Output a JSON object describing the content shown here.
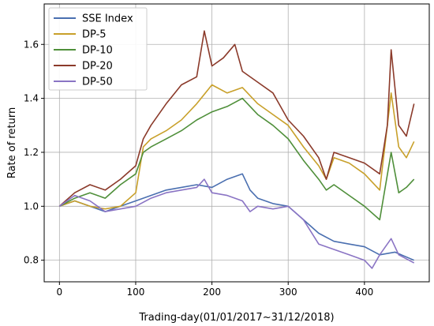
{
  "chart_data": {
    "type": "line",
    "title": "",
    "xlabel": "Trading-day(01/01/2017~31/12/2018)",
    "ylabel": "Rate of return",
    "xlim": [
      -20,
      485
    ],
    "ylim": [
      0.72,
      1.75
    ],
    "xticks": [
      0,
      100,
      200,
      300,
      400
    ],
    "yticks": [
      0.8,
      1.0,
      1.2,
      1.4,
      1.6
    ],
    "xtick_labels": [
      "0",
      "100",
      "200",
      "300",
      "400"
    ],
    "ytick_labels": [
      "0.8",
      "1.0",
      "1.2",
      "1.4",
      "1.6"
    ],
    "grid": true,
    "legend_position": "top-left",
    "series": [
      {
        "name": "SSE Index",
        "color": "#4a6fb0",
        "x": [
          0,
          20,
          40,
          60,
          80,
          100,
          120,
          140,
          160,
          180,
          200,
          220,
          240,
          250,
          260,
          280,
          300,
          320,
          340,
          360,
          380,
          400,
          420,
          440,
          465
        ],
        "values": [
          1.0,
          1.02,
          1.0,
          0.98,
          1.0,
          1.02,
          1.04,
          1.06,
          1.07,
          1.08,
          1.07,
          1.1,
          1.12,
          1.06,
          1.03,
          1.01,
          1.0,
          0.95,
          0.9,
          0.87,
          0.86,
          0.85,
          0.82,
          0.83,
          0.8
        ]
      },
      {
        "name": "DP-5",
        "color": "#c8a02a",
        "x": [
          0,
          20,
          40,
          60,
          80,
          100,
          110,
          120,
          140,
          160,
          180,
          200,
          220,
          240,
          260,
          280,
          300,
          320,
          340,
          350,
          360,
          380,
          400,
          420,
          435,
          445,
          455,
          465
        ],
        "values": [
          1.0,
          1.02,
          1.0,
          0.99,
          1.0,
          1.05,
          1.22,
          1.25,
          1.28,
          1.32,
          1.38,
          1.45,
          1.42,
          1.44,
          1.38,
          1.34,
          1.3,
          1.22,
          1.15,
          1.1,
          1.18,
          1.16,
          1.12,
          1.06,
          1.42,
          1.22,
          1.18,
          1.24
        ]
      },
      {
        "name": "DP-10",
        "color": "#4f8f3a",
        "x": [
          0,
          20,
          40,
          60,
          80,
          100,
          110,
          120,
          140,
          160,
          180,
          200,
          220,
          240,
          260,
          280,
          300,
          320,
          340,
          350,
          360,
          380,
          400,
          420,
          435,
          445,
          455,
          465
        ],
        "values": [
          1.0,
          1.03,
          1.05,
          1.03,
          1.08,
          1.12,
          1.2,
          1.22,
          1.25,
          1.28,
          1.32,
          1.35,
          1.37,
          1.4,
          1.34,
          1.3,
          1.25,
          1.17,
          1.1,
          1.06,
          1.08,
          1.04,
          1.0,
          0.95,
          1.2,
          1.05,
          1.07,
          1.1
        ]
      },
      {
        "name": "DP-20",
        "color": "#8b3a2a",
        "x": [
          0,
          20,
          40,
          60,
          80,
          100,
          110,
          120,
          140,
          160,
          180,
          190,
          200,
          215,
          230,
          240,
          260,
          280,
          300,
          320,
          340,
          350,
          360,
          380,
          400,
          420,
          430,
          435,
          445,
          455,
          465
        ],
        "values": [
          1.0,
          1.05,
          1.08,
          1.06,
          1.1,
          1.15,
          1.25,
          1.3,
          1.38,
          1.45,
          1.48,
          1.65,
          1.52,
          1.55,
          1.6,
          1.5,
          1.46,
          1.42,
          1.32,
          1.26,
          1.18,
          1.1,
          1.2,
          1.18,
          1.16,
          1.12,
          1.3,
          1.58,
          1.3,
          1.26,
          1.38
        ]
      },
      {
        "name": "DP-50",
        "color": "#8a74c4",
        "x": [
          0,
          20,
          40,
          60,
          80,
          100,
          120,
          140,
          160,
          180,
          190,
          200,
          220,
          240,
          250,
          260,
          280,
          300,
          320,
          340,
          360,
          380,
          400,
          410,
          420,
          435,
          445,
          465
        ],
        "values": [
          1.0,
          1.04,
          1.02,
          0.98,
          0.99,
          1.0,
          1.03,
          1.05,
          1.06,
          1.07,
          1.1,
          1.05,
          1.04,
          1.02,
          0.98,
          1.0,
          0.99,
          1.0,
          0.95,
          0.86,
          0.84,
          0.82,
          0.8,
          0.77,
          0.82,
          0.88,
          0.82,
          0.79
        ]
      }
    ]
  }
}
